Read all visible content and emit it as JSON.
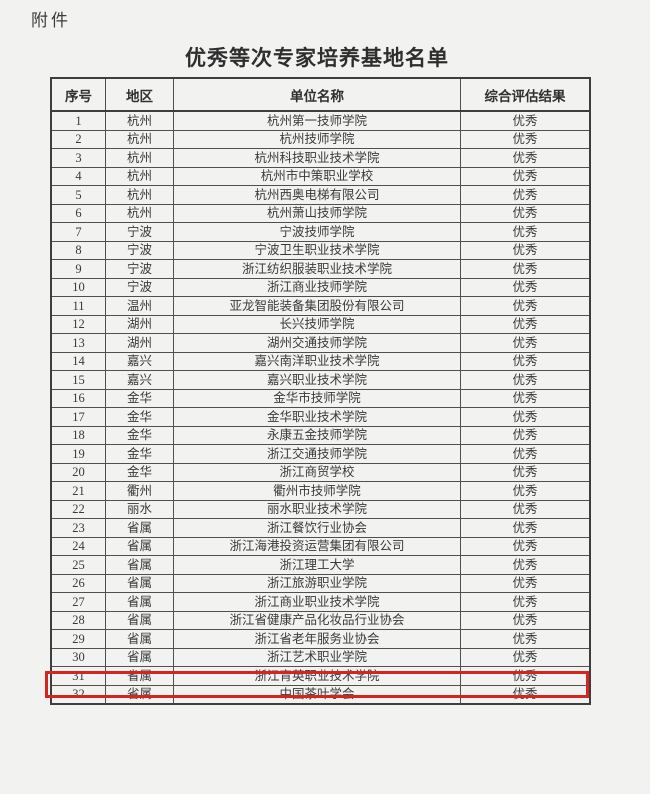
{
  "page": {
    "attachment_label": "附件",
    "title": "优秀等次专家培养基地名单"
  },
  "table": {
    "headers": [
      "序号",
      "地区",
      "单位名称",
      "综合评估结果"
    ],
    "rows": [
      {
        "no": "1",
        "region": "杭州",
        "unit": "杭州第一技师学院",
        "result": "优秀",
        "highlighted": false
      },
      {
        "no": "2",
        "region": "杭州",
        "unit": "杭州技师学院",
        "result": "优秀",
        "highlighted": false
      },
      {
        "no": "3",
        "region": "杭州",
        "unit": "杭州科技职业技术学院",
        "result": "优秀",
        "highlighted": false
      },
      {
        "no": "4",
        "region": "杭州",
        "unit": "杭州市中策职业学校",
        "result": "优秀",
        "highlighted": false
      },
      {
        "no": "5",
        "region": "杭州",
        "unit": "杭州西奥电梯有限公司",
        "result": "优秀",
        "highlighted": false
      },
      {
        "no": "6",
        "region": "杭州",
        "unit": "杭州萧山技师学院",
        "result": "优秀",
        "highlighted": false
      },
      {
        "no": "7",
        "region": "宁波",
        "unit": "宁波技师学院",
        "result": "优秀",
        "highlighted": false
      },
      {
        "no": "8",
        "region": "宁波",
        "unit": "宁波卫生职业技术学院",
        "result": "优秀",
        "highlighted": false
      },
      {
        "no": "9",
        "region": "宁波",
        "unit": "浙江纺织服装职业技术学院",
        "result": "优秀",
        "highlighted": false
      },
      {
        "no": "10",
        "region": "宁波",
        "unit": "浙江商业技师学院",
        "result": "优秀",
        "highlighted": false
      },
      {
        "no": "11",
        "region": "温州",
        "unit": "亚龙智能装备集团股份有限公司",
        "result": "优秀",
        "highlighted": false
      },
      {
        "no": "12",
        "region": "湖州",
        "unit": "长兴技师学院",
        "result": "优秀",
        "highlighted": false
      },
      {
        "no": "13",
        "region": "湖州",
        "unit": "湖州交通技师学院",
        "result": "优秀",
        "highlighted": false
      },
      {
        "no": "14",
        "region": "嘉兴",
        "unit": "嘉兴南洋职业技术学院",
        "result": "优秀",
        "highlighted": false
      },
      {
        "no": "15",
        "region": "嘉兴",
        "unit": "嘉兴职业技术学院",
        "result": "优秀",
        "highlighted": false
      },
      {
        "no": "16",
        "region": "金华",
        "unit": "金华市技师学院",
        "result": "优秀",
        "highlighted": false
      },
      {
        "no": "17",
        "region": "金华",
        "unit": "金华职业技术学院",
        "result": "优秀",
        "highlighted": false
      },
      {
        "no": "18",
        "region": "金华",
        "unit": "永康五金技师学院",
        "result": "优秀",
        "highlighted": false
      },
      {
        "no": "19",
        "region": "金华",
        "unit": "浙江交通技师学院",
        "result": "优秀",
        "highlighted": false
      },
      {
        "no": "20",
        "region": "金华",
        "unit": "浙江商贸学校",
        "result": "优秀",
        "highlighted": false
      },
      {
        "no": "21",
        "region": "衢州",
        "unit": "衢州市技师学院",
        "result": "优秀",
        "highlighted": false
      },
      {
        "no": "22",
        "region": "丽水",
        "unit": "丽水职业技术学院",
        "result": "优秀",
        "highlighted": false
      },
      {
        "no": "23",
        "region": "省属",
        "unit": "浙江餐饮行业协会",
        "result": "优秀",
        "highlighted": false
      },
      {
        "no": "24",
        "region": "省属",
        "unit": "浙江海港投资运营集团有限公司",
        "result": "优秀",
        "highlighted": false
      },
      {
        "no": "25",
        "region": "省属",
        "unit": "浙江理工大学",
        "result": "优秀",
        "highlighted": false
      },
      {
        "no": "26",
        "region": "省属",
        "unit": "浙江旅游职业学院",
        "result": "优秀",
        "highlighted": false
      },
      {
        "no": "27",
        "region": "省属",
        "unit": "浙江商业职业技术学院",
        "result": "优秀",
        "highlighted": false
      },
      {
        "no": "28",
        "region": "省属",
        "unit": "浙江省健康产品化妆品行业协会",
        "result": "优秀",
        "highlighted": false
      },
      {
        "no": "29",
        "region": "省属",
        "unit": "浙江省老年服务业协会",
        "result": "优秀",
        "highlighted": false
      },
      {
        "no": "30",
        "region": "省属",
        "unit": "浙江艺术职业学院",
        "result": "优秀",
        "highlighted": true
      },
      {
        "no": "31",
        "region": "省属",
        "unit": "浙江育英职业技术学院",
        "result": "优秀",
        "highlighted": false
      },
      {
        "no": "32",
        "region": "省属",
        "unit": "中国茶叶学会",
        "result": "优秀",
        "highlighted": false
      }
    ]
  },
  "colors": {
    "highlight_border": "#d62421",
    "page_background": "#f2f2f0",
    "table_line": "#4f4f4f",
    "text": "#363636"
  }
}
